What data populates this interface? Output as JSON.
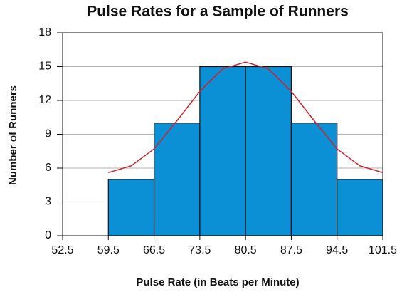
{
  "chart_data": {
    "type": "histogram",
    "title": "Pulse Rates for a Sample of Runners",
    "x_label": "Pulse Rate (in Beats per Minute)",
    "y_label": "Number of Runners",
    "bins": [
      52.5,
      59.5,
      66.5,
      73.5,
      80.5,
      87.5,
      94.5,
      101.5
    ],
    "values": [
      0,
      5,
      10,
      15,
      15,
      10,
      5
    ],
    "color": "#0b8fd5",
    "xlim": [
      52.5,
      101.5
    ],
    "xticks": [
      52.5,
      59.5,
      66.5,
      73.5,
      80.5,
      87.5,
      94.5,
      101.5
    ],
    "ylim": [
      0,
      18
    ],
    "yticks": [
      0,
      3,
      6,
      9,
      12,
      15,
      18
    ],
    "grid": true,
    "curve": {
      "color": "#d4202c",
      "x": [
        59.5,
        63,
        66.5,
        70,
        73.5,
        77,
        80.5,
        84,
        87.5,
        91,
        94.5,
        98,
        101.5
      ],
      "values": [
        5.6,
        6.2,
        7.7,
        10.2,
        12.8,
        14.8,
        15.4,
        14.8,
        12.8,
        10.2,
        7.7,
        6.2,
        5.6
      ]
    }
  }
}
